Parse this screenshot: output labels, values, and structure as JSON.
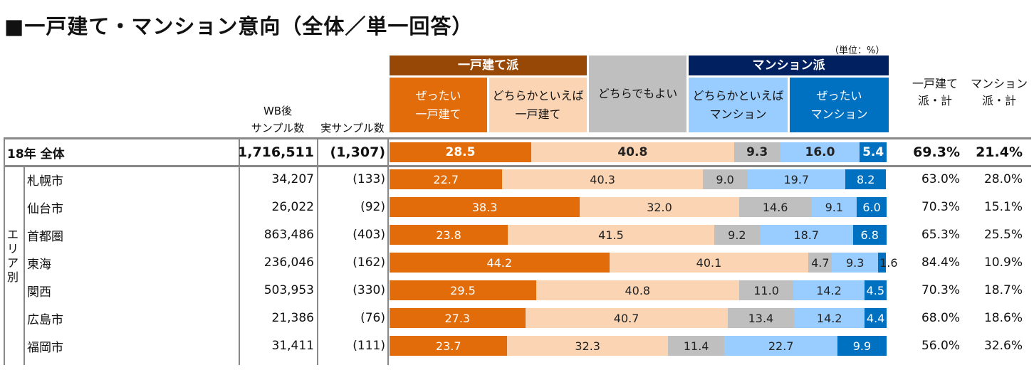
{
  "title": "■一戸建て・マンション意向（全体／単一回答）",
  "unit": "（単位：%）",
  "headers": {
    "wb": "WB後\nサンプル数",
    "real": "実サンプル数",
    "group_house": "一戸建て派",
    "group_mansion": "マンション派",
    "cats": [
      "ぜったい\n一戸建て",
      "どちらかといえば\n一戸建て",
      "どちらでもよい",
      "どちらかといえば\nマンション",
      "ぜったい\nマンション"
    ],
    "total_house": "一戸建て\n派・計",
    "total_mansion": "マンション\n派・計"
  },
  "area_label": "エリア別",
  "colors": [
    "#E36C0A",
    "#FBD4B4",
    "#BFBFBF",
    "#99CCFF",
    "#0070C0"
  ],
  "group_colors": {
    "house": "#974706",
    "neutral": "#BFBFBF",
    "mansion": "#002060"
  },
  "chart_data": {
    "type": "bar",
    "orientation": "horizontal",
    "stacked": true,
    "xlim": [
      0,
      100
    ],
    "categories": [
      "18年  全体",
      "札幌市",
      "仙台市",
      "首都圏",
      "東海",
      "関西",
      "広島市",
      "福岡市"
    ],
    "series": [
      {
        "name": "ぜったい一戸建て",
        "values": [
          28.5,
          22.7,
          38.3,
          23.8,
          44.2,
          29.5,
          27.3,
          23.7
        ]
      },
      {
        "name": "どちらかといえば一戸建て",
        "values": [
          40.8,
          40.3,
          32.0,
          41.5,
          40.1,
          40.8,
          40.7,
          32.3
        ]
      },
      {
        "name": "どちらでもよい",
        "values": [
          9.3,
          9.0,
          14.6,
          9.2,
          4.7,
          11.0,
          13.4,
          11.4
        ]
      },
      {
        "name": "どちらかといえばマンション",
        "values": [
          16.0,
          19.7,
          9.1,
          18.7,
          9.3,
          14.2,
          14.2,
          22.7
        ]
      },
      {
        "name": "ぜったいマンション",
        "values": [
          5.4,
          8.2,
          6.0,
          6.8,
          1.6,
          4.5,
          4.4,
          9.9
        ]
      }
    ]
  },
  "rows": [
    {
      "label": "18年  全体",
      "wb": "1,716,511",
      "real": "(1,307)",
      "th": "69.3%",
      "tm": "21.4%"
    },
    {
      "label": "札幌市",
      "wb": "34,207",
      "real": "(133)",
      "th": "63.0%",
      "tm": "28.0%"
    },
    {
      "label": "仙台市",
      "wb": "26,022",
      "real": "(92)",
      "th": "70.3%",
      "tm": "15.1%"
    },
    {
      "label": "首都圏",
      "wb": "863,486",
      "real": "(403)",
      "th": "65.3%",
      "tm": "25.5%"
    },
    {
      "label": "東海",
      "wb": "236,046",
      "real": "(162)",
      "th": "84.4%",
      "tm": "10.9%"
    },
    {
      "label": "関西",
      "wb": "503,953",
      "real": "(330)",
      "th": "70.3%",
      "tm": "18.7%"
    },
    {
      "label": "広島市",
      "wb": "21,386",
      "real": "(76)",
      "th": "68.0%",
      "tm": "18.6%"
    },
    {
      "label": "福岡市",
      "wb": "31,411",
      "real": "(111)",
      "th": "56.0%",
      "tm": "32.6%"
    }
  ]
}
